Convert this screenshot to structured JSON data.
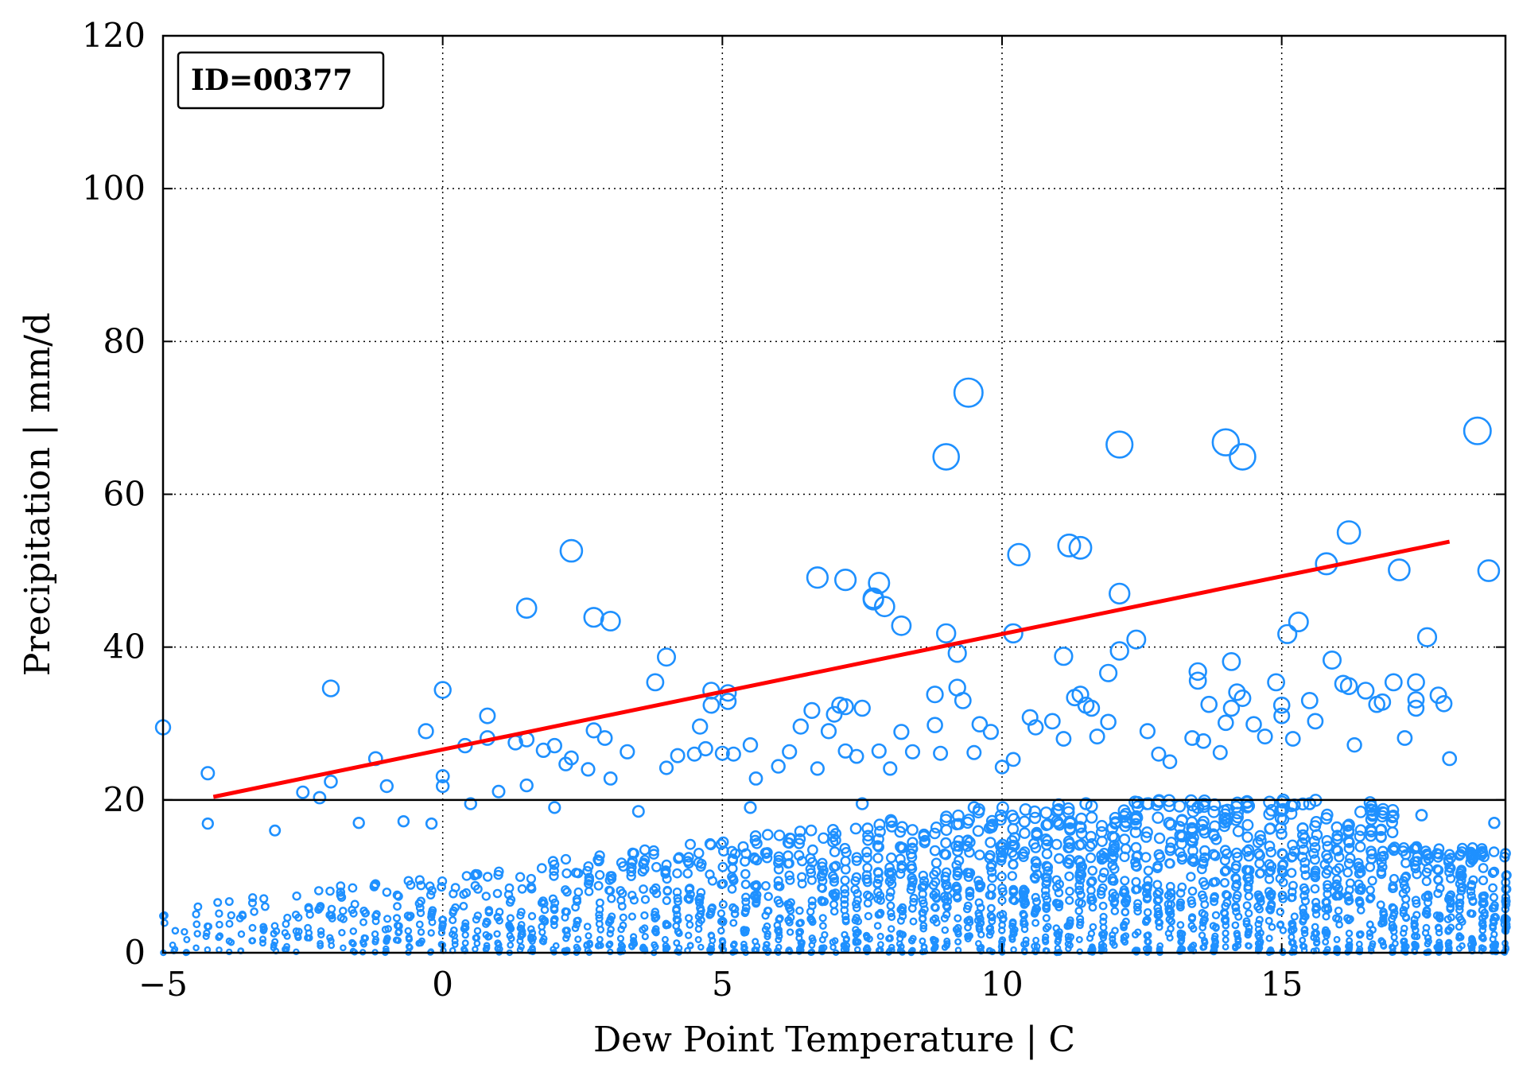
{
  "chart_data": {
    "type": "scatter",
    "title": "",
    "xlabel": "Dew Point Temperature | C",
    "ylabel": "Precipitation | mm/d",
    "xlim": [
      -5,
      19
    ],
    "ylim": [
      0,
      120
    ],
    "xticks": [
      -5,
      0,
      5,
      10,
      15
    ],
    "yticks": [
      0,
      20,
      40,
      60,
      80,
      100,
      120
    ],
    "x_tick_labels": [
      "−5",
      "0",
      "5",
      "10",
      "15"
    ],
    "y_tick_labels": [
      "0",
      "20",
      "40",
      "60",
      "80",
      "100",
      "120"
    ],
    "grid": true,
    "annotation": "ID=00377",
    "threshold_line": {
      "y": 20,
      "color": "#000000"
    },
    "trend_line": {
      "x": [
        -4.1,
        18.0
      ],
      "y": [
        20.4,
        53.8
      ],
      "color": "#ff0000"
    },
    "marker_color": "#1e90ff",
    "marker_style": "open-circle, size grows with precipitation",
    "series": [
      {
        "points": [
          [
            -5.0,
            29.5
          ],
          [
            -4.2,
            23.5
          ],
          [
            -4.2,
            16.9
          ],
          [
            -2.5,
            21.0
          ],
          [
            -2.2,
            20.3
          ],
          [
            -2.0,
            34.6
          ],
          [
            -2.0,
            22.4
          ],
          [
            -1.2,
            25.4
          ],
          [
            -1.0,
            21.8
          ],
          [
            -0.7,
            17.2
          ],
          [
            -0.3,
            29.0
          ],
          [
            -0.2,
            16.9
          ],
          [
            0.0,
            34.4
          ],
          [
            0.0,
            23.1
          ],
          [
            0.0,
            21.8
          ],
          [
            0.4,
            27.1
          ],
          [
            0.8,
            31.0
          ],
          [
            0.8,
            28.1
          ],
          [
            1.0,
            21.1
          ],
          [
            1.3,
            27.5
          ],
          [
            1.5,
            45.1
          ],
          [
            1.5,
            27.9
          ],
          [
            1.5,
            21.9
          ],
          [
            1.8,
            26.5
          ],
          [
            2.0,
            27.1
          ],
          [
            2.2,
            24.7
          ],
          [
            2.3,
            52.6
          ],
          [
            2.3,
            25.5
          ],
          [
            2.6,
            24.0
          ],
          [
            2.7,
            43.9
          ],
          [
            2.7,
            29.1
          ],
          [
            2.9,
            28.1
          ],
          [
            3.0,
            43.4
          ],
          [
            3.0,
            22.8
          ],
          [
            3.3,
            26.3
          ],
          [
            3.8,
            35.4
          ],
          [
            4.0,
            38.7
          ],
          [
            4.0,
            24.2
          ],
          [
            4.2,
            25.8
          ],
          [
            4.5,
            26.0
          ],
          [
            4.6,
            29.6
          ],
          [
            4.7,
            26.7
          ],
          [
            4.8,
            34.3
          ],
          [
            4.8,
            32.4
          ],
          [
            5.0,
            26.1
          ],
          [
            5.1,
            34.0
          ],
          [
            5.1,
            32.9
          ],
          [
            5.2,
            26.0
          ],
          [
            5.5,
            27.2
          ],
          [
            5.6,
            22.8
          ],
          [
            6.0,
            24.4
          ],
          [
            6.2,
            26.3
          ],
          [
            6.4,
            29.6
          ],
          [
            6.6,
            31.7
          ],
          [
            6.7,
            24.1
          ],
          [
            6.7,
            49.1
          ],
          [
            6.9,
            29.0
          ],
          [
            7.0,
            31.2
          ],
          [
            7.1,
            32.4
          ],
          [
            7.2,
            48.8
          ],
          [
            7.2,
            32.2
          ],
          [
            7.2,
            26.4
          ],
          [
            7.4,
            25.7
          ],
          [
            7.5,
            32.0
          ],
          [
            7.7,
            46.4
          ],
          [
            7.7,
            46.2
          ],
          [
            7.8,
            48.4
          ],
          [
            7.9,
            45.3
          ],
          [
            7.8,
            26.4
          ],
          [
            8.0,
            24.1
          ],
          [
            8.2,
            42.8
          ],
          [
            8.2,
            28.9
          ],
          [
            8.4,
            26.3
          ],
          [
            8.8,
            33.8
          ],
          [
            8.8,
            29.8
          ],
          [
            8.9,
            26.1
          ],
          [
            9.0,
            64.9
          ],
          [
            9.0,
            41.8
          ],
          [
            9.2,
            39.2
          ],
          [
            9.2,
            34.7
          ],
          [
            9.3,
            33.0
          ],
          [
            9.4,
            73.3
          ],
          [
            9.5,
            26.2
          ],
          [
            9.6,
            29.9
          ],
          [
            9.8,
            28.9
          ],
          [
            10.0,
            24.3
          ],
          [
            10.2,
            41.8
          ],
          [
            10.2,
            25.3
          ],
          [
            10.3,
            52.1
          ],
          [
            10.5,
            30.8
          ],
          [
            10.6,
            29.5
          ],
          [
            10.9,
            30.3
          ],
          [
            11.1,
            38.8
          ],
          [
            11.1,
            28.0
          ],
          [
            11.2,
            53.3
          ],
          [
            11.3,
            33.4
          ],
          [
            11.4,
            53.0
          ],
          [
            11.4,
            33.8
          ],
          [
            11.5,
            32.4
          ],
          [
            11.6,
            32.0
          ],
          [
            11.7,
            28.3
          ],
          [
            11.9,
            36.6
          ],
          [
            11.9,
            30.2
          ],
          [
            12.1,
            66.5
          ],
          [
            12.1,
            47.0
          ],
          [
            12.1,
            39.5
          ],
          [
            12.4,
            41.0
          ],
          [
            12.6,
            29.0
          ],
          [
            12.8,
            26.0
          ],
          [
            13.0,
            25.0
          ],
          [
            13.4,
            28.1
          ],
          [
            13.5,
            36.8
          ],
          [
            13.5,
            35.6
          ],
          [
            13.6,
            27.7
          ],
          [
            13.7,
            32.5
          ],
          [
            13.9,
            26.2
          ],
          [
            14.0,
            66.8
          ],
          [
            14.0,
            30.1
          ],
          [
            14.1,
            38.1
          ],
          [
            14.1,
            32.0
          ],
          [
            14.2,
            34.1
          ],
          [
            14.3,
            64.9
          ],
          [
            14.3,
            33.3
          ],
          [
            14.5,
            29.9
          ],
          [
            14.7,
            28.3
          ],
          [
            14.9,
            35.4
          ],
          [
            15.0,
            32.4
          ],
          [
            15.0,
            31.0
          ],
          [
            15.1,
            41.7
          ],
          [
            15.2,
            28.0
          ],
          [
            15.3,
            43.3
          ],
          [
            15.5,
            33.0
          ],
          [
            15.6,
            30.3
          ],
          [
            15.8,
            50.9
          ],
          [
            15.9,
            38.3
          ],
          [
            16.1,
            35.2
          ],
          [
            16.2,
            55.0
          ],
          [
            16.2,
            34.9
          ],
          [
            16.3,
            27.2
          ],
          [
            16.5,
            34.3
          ],
          [
            16.7,
            32.5
          ],
          [
            16.8,
            32.8
          ],
          [
            17.0,
            35.4
          ],
          [
            17.1,
            50.1
          ],
          [
            17.2,
            28.1
          ],
          [
            17.4,
            35.4
          ],
          [
            17.4,
            33.1
          ],
          [
            17.4,
            32.0
          ],
          [
            17.6,
            41.3
          ],
          [
            17.8,
            33.7
          ],
          [
            17.9,
            32.6
          ],
          [
            18.0,
            25.4
          ],
          [
            18.5,
            68.3
          ],
          [
            18.7,
            50.0
          ],
          [
            -3.0,
            16.0
          ],
          [
            -1.5,
            17.0
          ],
          [
            0.5,
            19.5
          ],
          [
            2.0,
            19.0
          ],
          [
            3.5,
            18.5
          ],
          [
            5.5,
            19.0
          ],
          [
            7.5,
            19.5
          ],
          [
            9.5,
            19.0
          ],
          [
            11.5,
            19.5
          ],
          [
            13.5,
            19.0
          ],
          [
            15.5,
            19.5
          ],
          [
            17.5,
            18.0
          ],
          [
            18.8,
            17.0
          ],
          [
            19.0,
            13.0
          ]
        ]
      }
    ]
  }
}
